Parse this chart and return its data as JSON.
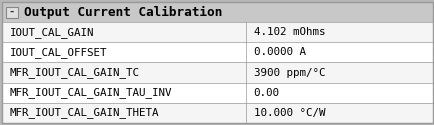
{
  "title": "Output Current Calibration",
  "title_bg": "#c8c8c8",
  "header_text_color": "#000000",
  "row_bg_odd": "#f5f5f5",
  "row_bg_even": "#ffffff",
  "border_color": "#999999",
  "rows": [
    [
      "IOUT_CAL_GAIN",
      "4.102 mOhms"
    ],
    [
      "IOUT_CAL_OFFSET",
      "0.0000 A"
    ],
    [
      "MFR_IOUT_CAL_GAIN_TC",
      "3900 ppm/°C"
    ],
    [
      "MFR_IOUT_CAL_GAIN_TAU_INV",
      "0.00"
    ],
    [
      "MFR_IOUT_CAL_GAIN_THETA",
      "10.000 °C/W"
    ]
  ],
  "col_split": 0.565,
  "font_size": 7.8,
  "title_font_size": 9.2,
  "fig_bg": "#b8b8b8",
  "minus_symbol": "-",
  "icon_bg": "#e0e0e0",
  "icon_border": "#888888"
}
